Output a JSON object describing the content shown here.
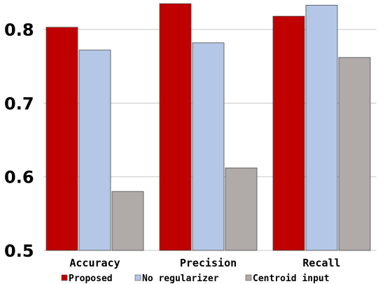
{
  "chart_data": {
    "type": "bar",
    "categories": [
      "Accuracy",
      "Precision",
      "Recall"
    ],
    "series": [
      {
        "name": "Proposed",
        "color": "#c00000",
        "values": [
          0.803,
          0.835,
          0.818
        ]
      },
      {
        "name": "No regularizer",
        "color": "#b4c7e7",
        "values": [
          0.772,
          0.782,
          0.833
        ]
      },
      {
        "name": "Centroid input",
        "color": "#b0aba9",
        "values": [
          0.58,
          0.612,
          0.762
        ]
      }
    ],
    "title": "",
    "xlabel": "",
    "ylabel": "",
    "ylim": [
      0.5,
      0.84
    ],
    "yticks": [
      "0.5",
      "0.6",
      "0.7",
      "0.8"
    ],
    "grid": true,
    "legend_position": "bottom"
  }
}
